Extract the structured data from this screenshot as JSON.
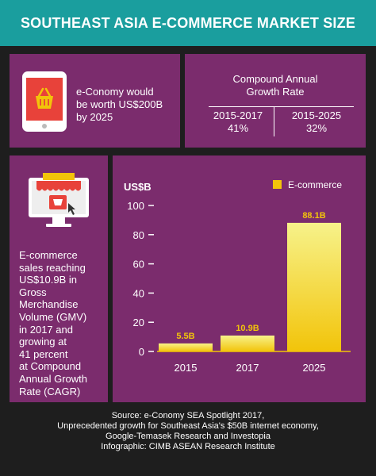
{
  "header": {
    "title": "SOUTHEAST ASIA E-COMMERCE MARKET SIZE"
  },
  "economy": {
    "text_lines": [
      "e-Conomy would",
      "be worth US$200B",
      "by 2025"
    ]
  },
  "cagr": {
    "title_lines": [
      "Compound Annual",
      "Growth Rate"
    ],
    "periods": [
      {
        "label": "2015-2017",
        "value": "41%"
      },
      {
        "label": "2015-2025",
        "value": "32%"
      }
    ]
  },
  "gmv": {
    "text_lines": [
      "E-commerce",
      "sales reaching",
      "US$10.9B in",
      "Gross",
      "Merchandise",
      "Volume (GMV)",
      "in 2017 and",
      "growing at",
      "41 percent",
      "at Compound",
      "Annual Growth",
      "Rate (CAGR)"
    ]
  },
  "chart_data": {
    "type": "bar",
    "categories": [
      "2015",
      "2017",
      "2025"
    ],
    "values": [
      5.5,
      10.9,
      88.1
    ],
    "data_labels": [
      "5.5B",
      "10.9B",
      "88.1B"
    ],
    "ylabel": "US$B",
    "yticks": [
      0,
      20,
      40,
      60,
      80,
      100
    ],
    "ylim": [
      0,
      100
    ],
    "series": [
      {
        "name": "E-commerce",
        "values": [
          5.5,
          10.9,
          88.1
        ]
      }
    ],
    "legend_position": "top-right",
    "grid": false
  },
  "footer": {
    "lines": [
      "Source: e-Conomy SEA Spotlight 2017,",
      "Unprecedented growth for Southeast Asia's $50B internet economy,",
      "Google-Temasek Research and Investopia",
      "Infographic: CIMB ASEAN Research Institute"
    ]
  },
  "colors": {
    "header_bg": "#1a9e9e",
    "panel_bg": "#7b2c6d",
    "page_bg": "#1e1e1e",
    "bar_top": "#f7f28a",
    "bar_bottom": "#f2c40a",
    "label_color": "#f2c40a"
  }
}
